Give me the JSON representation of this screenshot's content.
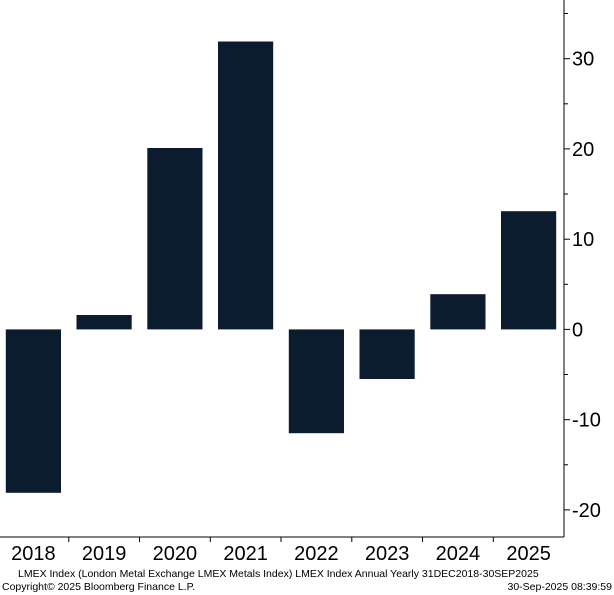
{
  "chart_data": {
    "type": "bar",
    "categories": [
      "2018",
      "2019",
      "2020",
      "2021",
      "2022",
      "2023",
      "2024",
      "2025"
    ],
    "values": [
      -18.1,
      1.6,
      20.1,
      31.9,
      -11.5,
      -5.5,
      3.9,
      13.1
    ],
    "ylim": [
      -23,
      36.5
    ],
    "yticks": [
      -20,
      -10,
      0,
      10,
      20,
      30
    ],
    "ytick_labels": [
      "-20",
      "-10",
      "0",
      "10",
      "20",
      "30"
    ],
    "bar_color": "#0c1c2f",
    "grid": false,
    "axis_position": "right"
  },
  "footer": {
    "description": "LMEX Index (London Metal Exchange LMEX Metals Index) LMEX Index Annual  Yearly 31DEC2018-30SEP2025",
    "copyright": "Copyright© 2025 Bloomberg Finance L.P.",
    "timestamp": "30-Sep-2025 08:39:59"
  }
}
